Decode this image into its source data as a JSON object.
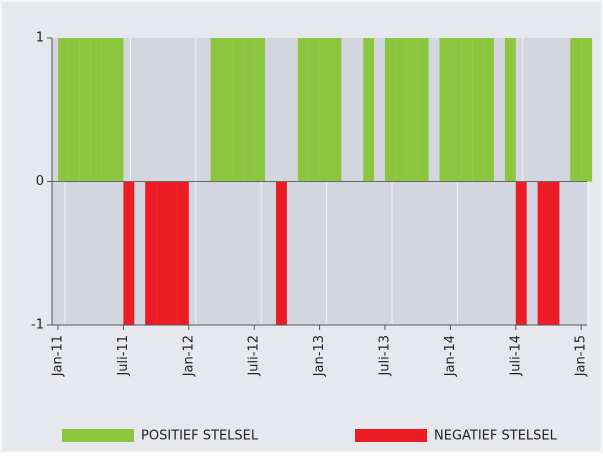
{
  "chart_data": {
    "type": "bar",
    "categories": [
      "Jan-11",
      null,
      null,
      null,
      null,
      null,
      "Juli-11",
      null,
      null,
      null,
      null,
      null,
      "Jan-12",
      null,
      null,
      null,
      null,
      null,
      "Juli-12",
      null,
      null,
      null,
      null,
      null,
      "Jan-13",
      null,
      null,
      null,
      null,
      null,
      "Juli-13",
      null,
      null,
      null,
      null,
      null,
      "Jan-14",
      null,
      null,
      null,
      null,
      null,
      "Juli-14",
      null,
      null,
      null,
      null,
      null,
      "Jan-15"
    ],
    "values": [
      1,
      1,
      1,
      1,
      1,
      1,
      -1,
      0,
      -1,
      -1,
      -1,
      -1,
      0,
      0,
      1,
      1,
      1,
      1,
      1,
      0,
      -1,
      0,
      1,
      1,
      1,
      1,
      0,
      0,
      1,
      0,
      1,
      1,
      1,
      1,
      0,
      1,
      1,
      1,
      1,
      1,
      0,
      1,
      -1,
      0,
      -1,
      -1,
      0,
      1,
      1
    ],
    "legend": [
      {
        "label": "POSITIEF STELSEL",
        "color": "#8cc63f"
      },
      {
        "label": "NEGATIEF STELSEL",
        "color": "#ed1c24"
      }
    ],
    "ylim": [
      -1,
      1
    ],
    "yticks": [
      -1,
      0,
      1
    ],
    "grid": true
  }
}
